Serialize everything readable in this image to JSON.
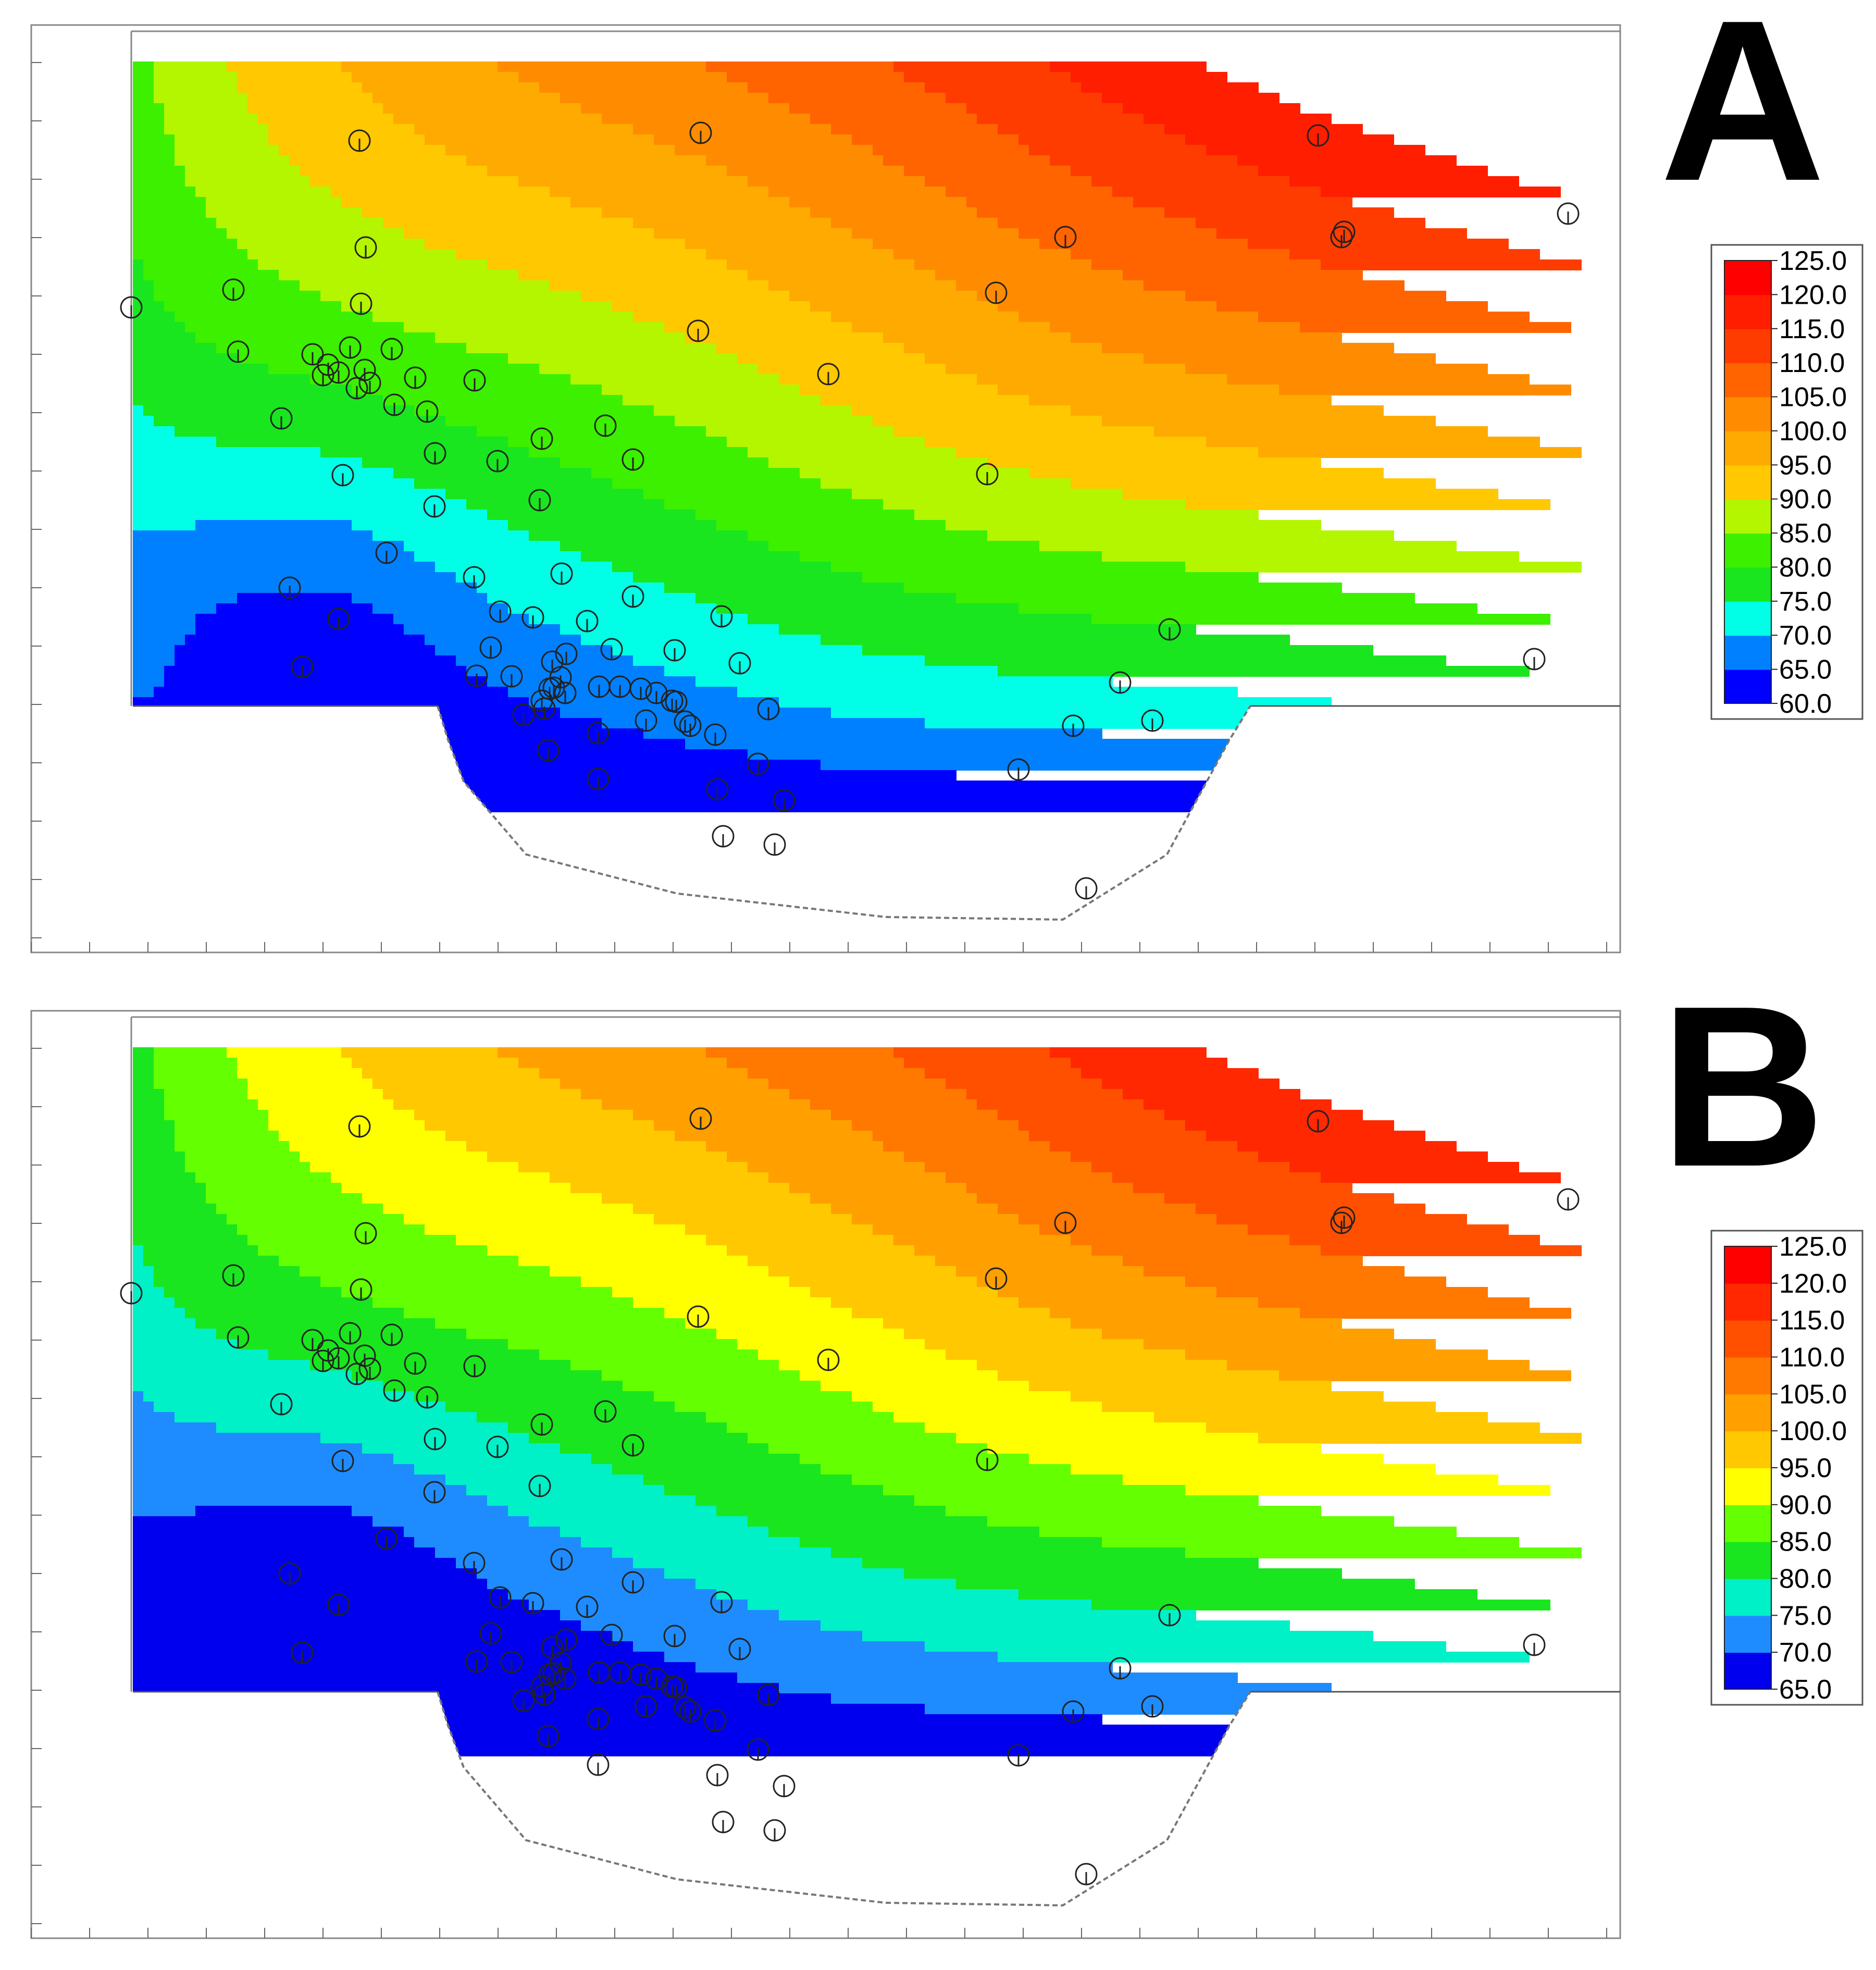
{
  "figure": {
    "panels": [
      "A",
      "B"
    ]
  },
  "chart_data": [
    {
      "type": "heatmap",
      "panel_label": "A",
      "title": "",
      "xlabel": "",
      "ylabel": "",
      "legend": {
        "placement": "right",
        "tick_labels": [
          "125.0",
          "120.0",
          "115.0",
          "110.0",
          "105.0",
          "100.0",
          "95.0",
          "90.0",
          "85.0",
          "80.0",
          "75.0",
          "70.0",
          "65.0",
          "60.0"
        ],
        "bands": [
          {
            "from": 60,
            "to": 65,
            "color": "#0000ff"
          },
          {
            "from": 65,
            "to": 70,
            "color": "#0080ff"
          },
          {
            "from": 70,
            "to": 75,
            "color": "#00ffe6"
          },
          {
            "from": 75,
            "to": 80,
            "color": "#19e61e"
          },
          {
            "from": 80,
            "to": 85,
            "color": "#3cf000"
          },
          {
            "from": 85,
            "to": 90,
            "color": "#b4f500"
          },
          {
            "from": 90,
            "to": 95,
            "color": "#ffc800"
          },
          {
            "from": 95,
            "to": 100,
            "color": "#ffaa00"
          },
          {
            "from": 100,
            "to": 105,
            "color": "#ff8c00"
          },
          {
            "from": 105,
            "to": 110,
            "color": "#ff6400"
          },
          {
            "from": 110,
            "to": 115,
            "color": "#ff3c00"
          },
          {
            "from": 115,
            "to": 120,
            "color": "#ff1e00"
          },
          {
            "from": 120,
            "to": 125,
            "color": "#ff0000"
          }
        ]
      },
      "grid": false
    },
    {
      "type": "heatmap",
      "panel_label": "B",
      "title": "",
      "xlabel": "",
      "ylabel": "",
      "legend": {
        "placement": "right",
        "tick_labels": [
          "125.0",
          "120.0",
          "115.0",
          "110.0",
          "105.0",
          "100.0",
          "95.0",
          "90.0",
          "85.0",
          "80.0",
          "75.0",
          "70.0",
          "65.0"
        ],
        "bands": [
          {
            "from": 65,
            "to": 70,
            "color": "#0000ee"
          },
          {
            "from": 70,
            "to": 75,
            "color": "#1e8cff"
          },
          {
            "from": 75,
            "to": 80,
            "color": "#00f0c8"
          },
          {
            "from": 80,
            "to": 85,
            "color": "#19e61e"
          },
          {
            "from": 85,
            "to": 90,
            "color": "#64ff00"
          },
          {
            "from": 90,
            "to": 95,
            "color": "#ffff00"
          },
          {
            "from": 95,
            "to": 100,
            "color": "#ffc800"
          },
          {
            "from": 100,
            "to": 105,
            "color": "#ffa000"
          },
          {
            "from": 105,
            "to": 110,
            "color": "#ff7800"
          },
          {
            "from": 110,
            "to": 115,
            "color": "#ff5000"
          },
          {
            "from": 115,
            "to": 120,
            "color": "#ff2800"
          },
          {
            "from": 120,
            "to": 125,
            "color": "#ff0000"
          }
        ]
      },
      "grid": false
    }
  ]
}
